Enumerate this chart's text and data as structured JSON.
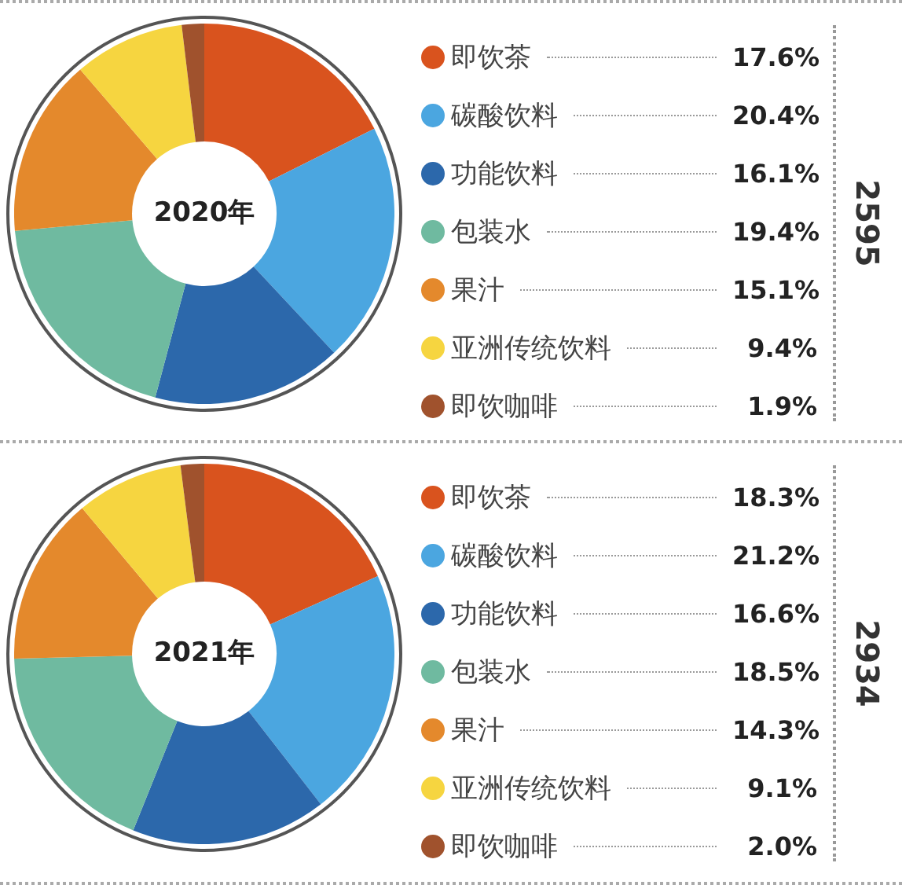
{
  "chart_data": [
    {
      "type": "donut",
      "title": "2020年",
      "categories": [
        "即饮茶",
        "碳酸饮料",
        "功能饮料",
        "包装水",
        "果汁",
        "亚洲传统饮料",
        "即饮咖啡"
      ],
      "values": [
        17.6,
        20.4,
        16.1,
        19.4,
        15.1,
        9.4,
        1.9
      ],
      "value_labels": [
        "17.6%",
        "20.4%",
        "16.1%",
        "19.4%",
        "15.1%",
        "9.4%",
        "1.9%"
      ],
      "colors": [
        "#d9531e",
        "#4ba6e0",
        "#2c68ab",
        "#6fbaa0",
        "#e4892c",
        "#f6d540",
        "#a0522d"
      ],
      "legend": "right",
      "annotations": [
        "2595"
      ]
    },
    {
      "type": "donut",
      "title": "2021年",
      "categories": [
        "即饮茶",
        "碳酸饮料",
        "功能饮料",
        "包装水",
        "果汁",
        "亚洲传统饮料",
        "即饮咖啡"
      ],
      "values": [
        18.3,
        21.2,
        16.6,
        18.5,
        14.3,
        9.1,
        2.0
      ],
      "value_labels": [
        "18.3%",
        "21.2%",
        "16.6%",
        "18.5%",
        "14.3%",
        "9.1%",
        "2.0%"
      ],
      "colors": [
        "#d9531e",
        "#4ba6e0",
        "#2c68ab",
        "#6fbaa0",
        "#e4892c",
        "#f6d540",
        "#a0522d"
      ],
      "legend": "right",
      "annotations": [
        "2934"
      ]
    }
  ]
}
